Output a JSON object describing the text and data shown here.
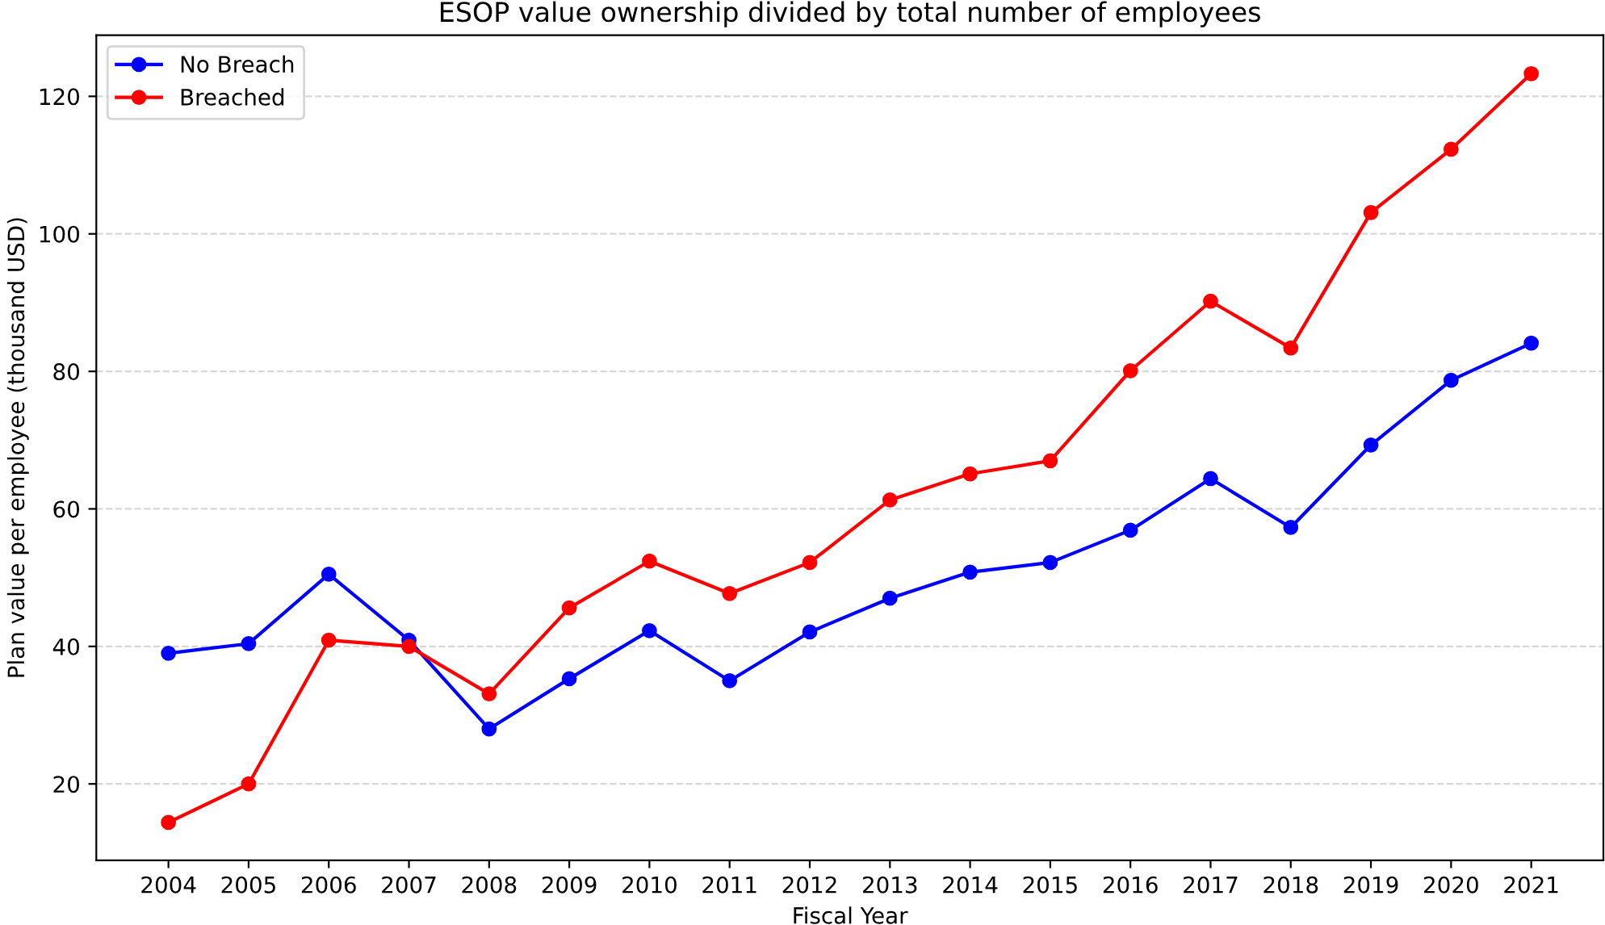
{
  "chart_data": {
    "type": "line",
    "title": "ESOP value ownership divided by total number of employees",
    "xlabel": "Fiscal Year",
    "ylabel": "Plan value per employee (thousand USD)",
    "categories": [
      "2004",
      "2005",
      "2006",
      "2007",
      "2008",
      "2009",
      "2010",
      "2011",
      "2012",
      "2013",
      "2014",
      "2015",
      "2016",
      "2017",
      "2018",
      "2019",
      "2020",
      "2021"
    ],
    "series": [
      {
        "name": "No Breach",
        "color": "#0000ff",
        "values": [
          39.0,
          40.4,
          50.5,
          40.9,
          28.0,
          35.3,
          42.3,
          35.0,
          42.1,
          47.0,
          50.8,
          52.2,
          56.9,
          64.4,
          57.3,
          69.3,
          78.7,
          84.1
        ]
      },
      {
        "name": "Breached",
        "color": "#ff0000",
        "values": [
          14.4,
          20.0,
          40.9,
          40.0,
          33.1,
          45.6,
          52.4,
          47.7,
          52.2,
          61.3,
          65.1,
          67.0,
          80.1,
          90.2,
          83.4,
          103.1,
          112.3,
          123.3
        ]
      }
    ],
    "ylim": [
      8.9,
      128.9
    ],
    "yticks": [
      20,
      40,
      60,
      80,
      100,
      120
    ],
    "grid": "y",
    "legend": "top left",
    "marker": "circle",
    "line_style": "solid"
  }
}
